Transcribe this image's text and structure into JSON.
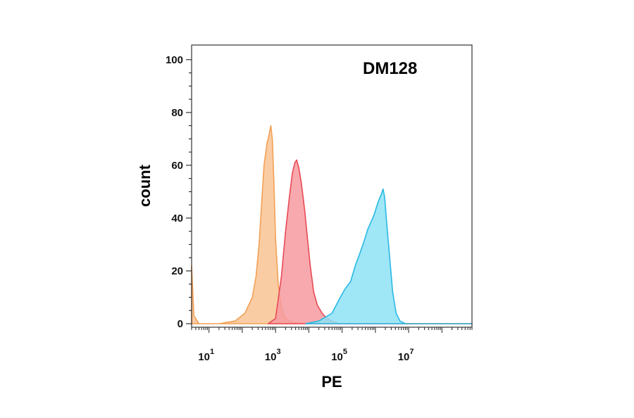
{
  "chart_data": {
    "type": "area",
    "title": "",
    "annotation": "DM128",
    "xlabel": "PE",
    "ylabel": "count",
    "x_scale": "log",
    "xlim": [
      3,
      800000000
    ],
    "ylim": [
      0,
      105
    ],
    "y_ticks": [
      0,
      20,
      40,
      60,
      80,
      100
    ],
    "x_ticks": [
      {
        "base": "10",
        "exp": "1",
        "value": 10
      },
      {
        "base": "10",
        "exp": "3",
        "value": 1000
      },
      {
        "base": "10",
        "exp": "5",
        "value": 100000
      },
      {
        "base": "10",
        "exp": "7",
        "value": 10000000
      }
    ],
    "grid": false,
    "series": [
      {
        "fill": "#f9c393",
        "stroke": "#f2a055",
        "points": [
          [
            3,
            22
          ],
          [
            3.5,
            3
          ],
          [
            5,
            0
          ],
          [
            20,
            0
          ],
          [
            60,
            1
          ],
          [
            120,
            4
          ],
          [
            200,
            10
          ],
          [
            260,
            18
          ],
          [
            320,
            30
          ],
          [
            380,
            45
          ],
          [
            450,
            60
          ],
          [
            550,
            68
          ],
          [
            650,
            72
          ],
          [
            720,
            75
          ],
          [
            800,
            70
          ],
          [
            900,
            52
          ],
          [
            1000,
            32
          ],
          [
            1200,
            15
          ],
          [
            1500,
            6
          ],
          [
            2000,
            2
          ],
          [
            3000,
            0.5
          ],
          [
            8000,
            0
          ],
          [
            800000000,
            0
          ]
        ]
      },
      {
        "fill": "#f69aa0",
        "stroke": "#e84a55",
        "points": [
          [
            600,
            0
          ],
          [
            1000,
            2
          ],
          [
            1500,
            18
          ],
          [
            2000,
            35
          ],
          [
            2600,
            48
          ],
          [
            3200,
            57
          ],
          [
            3800,
            61
          ],
          [
            4300,
            62
          ],
          [
            5000,
            59
          ],
          [
            6000,
            53
          ],
          [
            7500,
            43
          ],
          [
            9000,
            33
          ],
          [
            11000,
            22
          ],
          [
            14000,
            12
          ],
          [
            18000,
            7
          ],
          [
            25000,
            4
          ],
          [
            35000,
            2
          ],
          [
            50000,
            1
          ],
          [
            80000,
            0
          ],
          [
            800000000,
            0
          ]
        ]
      },
      {
        "fill": "#8ee2f6",
        "stroke": "#29b9e3",
        "points": [
          [
            8000,
            0
          ],
          [
            20000,
            1
          ],
          [
            50000,
            4
          ],
          [
            80000,
            9
          ],
          [
            120000,
            13
          ],
          [
            180000,
            16
          ],
          [
            250000,
            22
          ],
          [
            350000,
            27
          ],
          [
            450000,
            31
          ],
          [
            600000,
            36
          ],
          [
            900000,
            41
          ],
          [
            1200000,
            46
          ],
          [
            1500000,
            49
          ],
          [
            1700000,
            51
          ],
          [
            1900000,
            48
          ],
          [
            2200000,
            38
          ],
          [
            2700000,
            25
          ],
          [
            3300000,
            12
          ],
          [
            4200000,
            4
          ],
          [
            5500000,
            1
          ],
          [
            8000000,
            0
          ],
          [
            800000000,
            0
          ]
        ]
      }
    ]
  }
}
